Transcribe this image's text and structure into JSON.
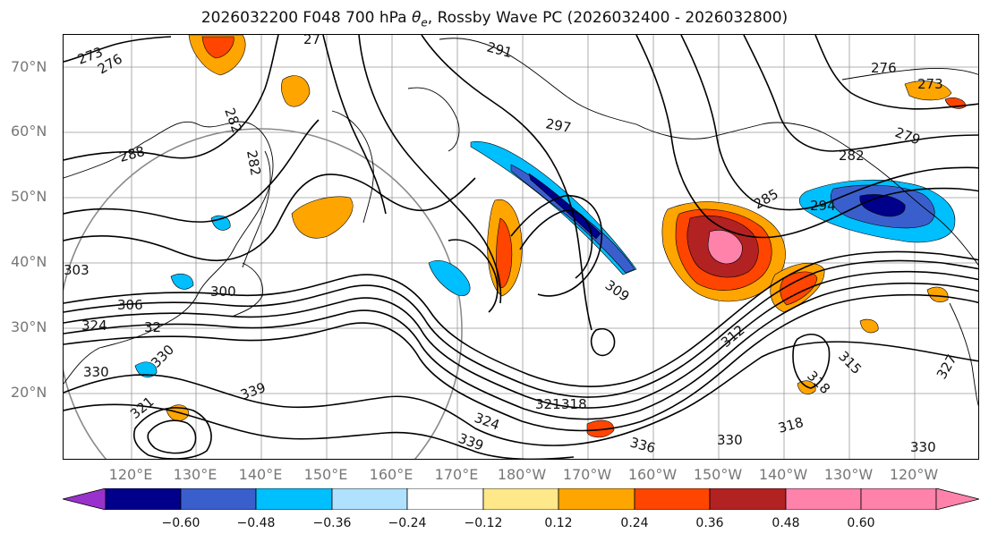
{
  "title": {
    "run": "2026032200 F048 700 hPa",
    "variable_symbol": "θ",
    "variable_subscript": "e",
    "rest": ", Rossby Wave PC (2026032400 - 2026032800)"
  },
  "lat_labels": [
    "70°N",
    "60°N",
    "50°N",
    "40°N",
    "30°N",
    "20°N"
  ],
  "lon_labels": [
    "120°E",
    "130°E",
    "140°E",
    "150°E",
    "160°E",
    "170°E",
    "180°W",
    "170°W",
    "160°W",
    "150°W",
    "140°W",
    "130°W",
    "120°W"
  ],
  "contour_labels": [
    "273",
    "276",
    "282",
    "291",
    "297",
    "282",
    "288",
    "276",
    "273",
    "279",
    "282",
    "285",
    "294",
    "303",
    "300",
    "306",
    "324",
    "32",
    "330",
    "330",
    "309",
    "321",
    "318",
    "324",
    "339",
    "336",
    "330",
    "318",
    "330",
    "315",
    "318",
    "327",
    "321",
    "312",
    "339",
    "27"
  ],
  "colorbar": {
    "ticks": [
      "−0.60",
      "−0.48",
      "−0.36",
      "−0.24",
      "−0.12",
      "0.12",
      "0.24",
      "0.36",
      "0.48",
      "0.60"
    ],
    "colors": [
      "#9932cc",
      "#00008b",
      "#3a5fcd",
      "#00bfff",
      "#b0e2ff",
      "#ffffff",
      "#ffe88a",
      "#ffa500",
      "#ff4500",
      "#b22222",
      "#ff82ab",
      "#ff82ab"
    ]
  },
  "colors": {
    "neg_strong": "#00008b",
    "neg_mid": "#3a5fcd",
    "neg_light": "#00bfff",
    "neg_faint": "#b0e2ff",
    "pos_faint": "#ffe88a",
    "pos_light": "#ffa500",
    "pos_mid": "#ff4500",
    "pos_strong": "#b22222",
    "pos_max": "#ff82ab"
  }
}
